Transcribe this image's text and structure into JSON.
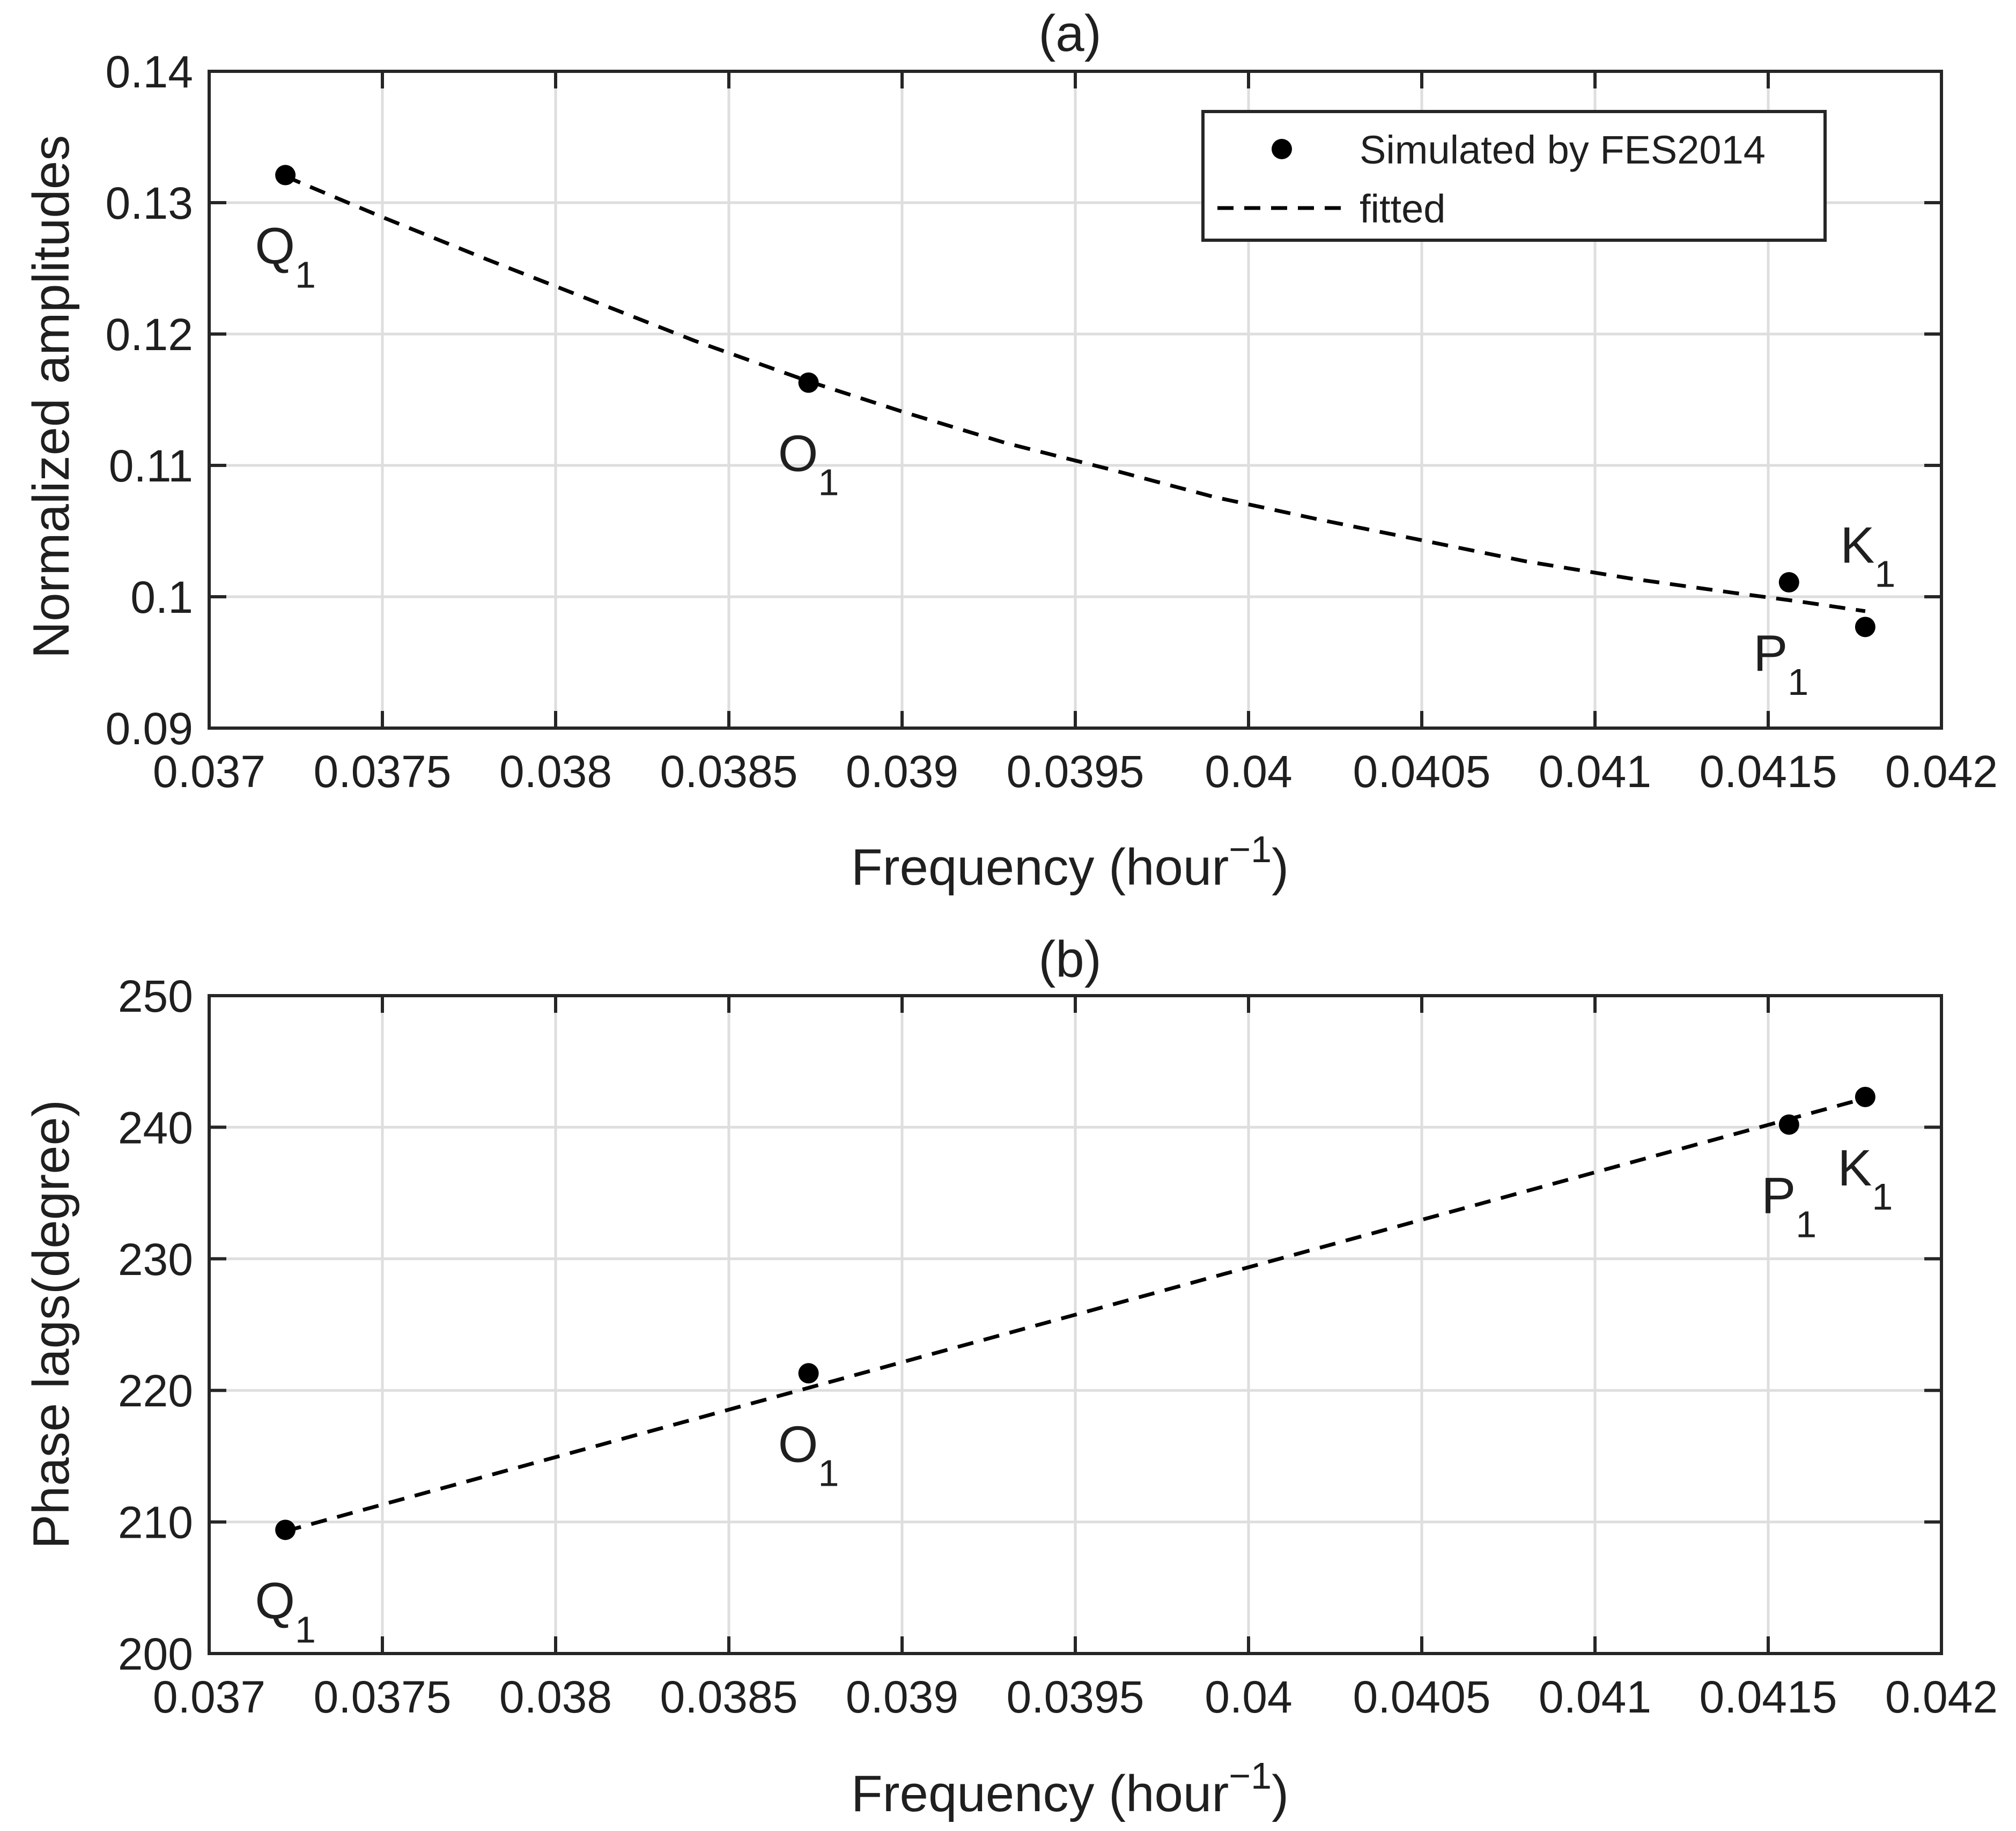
{
  "chart_data": [
    {
      "type": "scatter",
      "title": "(a)",
      "xlabel": "Frequency (hour",
      "xlabel_sup": "−1",
      "xlabel_close": ")",
      "ylabel": "Normalized amplitudes",
      "xlim": [
        0.037,
        0.042
      ],
      "ylim": [
        0.09,
        0.14
      ],
      "grid": true,
      "x_ticks": [
        0.037,
        0.0375,
        0.038,
        0.0385,
        0.039,
        0.0395,
        0.04,
        0.0405,
        0.041,
        0.0415,
        0.042
      ],
      "x_tick_labels": [
        "0.037",
        "0.0375",
        "0.038",
        "0.0385",
        "0.039",
        "0.0395",
        "0.04",
        "0.0405",
        "0.041",
        "0.0415",
        "0.042"
      ],
      "y_ticks": [
        0.09,
        0.1,
        0.11,
        0.12,
        0.13,
        0.14
      ],
      "y_tick_labels": [
        "0.09",
        "0.1",
        "0.11",
        "0.12",
        "0.13",
        "0.14"
      ],
      "legend": {
        "location": "top-right",
        "entries": [
          {
            "label": "Simulated by FES2014",
            "style": "marker"
          },
          {
            "label": "fitted",
            "style": "dashed"
          }
        ]
      },
      "series": [
        {
          "name": "Simulated by FES2014",
          "style": "marker",
          "points": [
            {
              "label": "Q",
              "sub": "1",
              "x": 0.03722,
              "y": 0.1321,
              "label_pos": "below"
            },
            {
              "label": "O",
              "sub": "1",
              "x": 0.03873,
              "y": 0.1163,
              "label_pos": "below"
            },
            {
              "label": "P",
              "sub": "1",
              "x": 0.04156,
              "y": 0.1011,
              "label_pos": "below-left"
            },
            {
              "label": "K",
              "sub": "1",
              "x": 0.04178,
              "y": 0.0977,
              "label_pos": "above"
            }
          ]
        },
        {
          "name": "fitted",
          "style": "dashed",
          "x": [
            0.03722,
            0.0375,
            0.0378,
            0.0381,
            0.0384,
            0.03873,
            0.039,
            0.0393,
            0.0396,
            0.0399,
            0.0402,
            0.0405,
            0.0408,
            0.0411,
            0.0414,
            0.0416,
            0.04178
          ],
          "y": [
            0.132,
            0.1289,
            0.1257,
            0.1226,
            0.1195,
            0.1164,
            0.1141,
            0.1117,
            0.1097,
            0.1076,
            0.1059,
            0.1043,
            0.1027,
            0.1014,
            0.1003,
            0.0996,
            0.0989
          ]
        }
      ]
    },
    {
      "type": "scatter",
      "title": "(b)",
      "xlabel": "Frequency (hour",
      "xlabel_sup": "−1",
      "xlabel_close": ")",
      "ylabel": "Phase lags(degree)",
      "xlim": [
        0.037,
        0.042
      ],
      "ylim": [
        200,
        250
      ],
      "grid": true,
      "x_ticks": [
        0.037,
        0.0375,
        0.038,
        0.0385,
        0.039,
        0.0395,
        0.04,
        0.0405,
        0.041,
        0.0415,
        0.042
      ],
      "x_tick_labels": [
        "0.037",
        "0.0375",
        "0.038",
        "0.0385",
        "0.039",
        "0.0395",
        "0.04",
        "0.0405",
        "0.041",
        "0.0415",
        "0.042"
      ],
      "y_ticks": [
        200,
        210,
        220,
        230,
        240,
        250
      ],
      "y_tick_labels": [
        "200",
        "210",
        "220",
        "230",
        "240",
        "250"
      ],
      "series": [
        {
          "name": "Simulated by FES2014",
          "style": "marker",
          "points": [
            {
              "label": "Q",
              "sub": "1",
              "x": 0.03722,
              "y": 209.4,
              "label_pos": "below"
            },
            {
              "label": "O",
              "sub": "1",
              "x": 0.03873,
              "y": 221.3,
              "label_pos": "below"
            },
            {
              "label": "P",
              "sub": "1",
              "x": 0.04156,
              "y": 240.2,
              "label_pos": "below"
            },
            {
              "label": "K",
              "sub": "1",
              "x": 0.04178,
              "y": 242.3,
              "label_pos": "below"
            }
          ]
        },
        {
          "name": "fitted",
          "style": "dashed",
          "x": [
            0.03722,
            0.04178
          ],
          "y": [
            209.3,
            242.2
          ]
        }
      ]
    }
  ]
}
